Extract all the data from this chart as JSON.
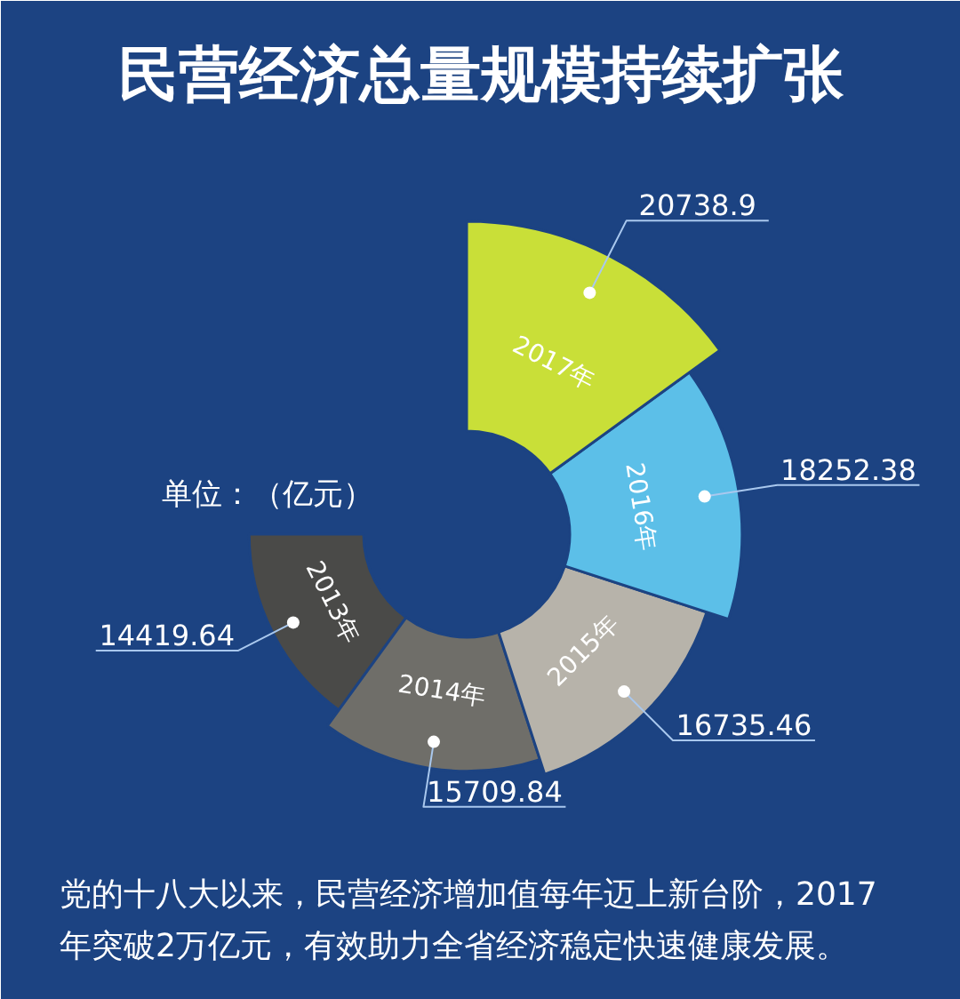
{
  "chart_data": {
    "type": "other",
    "title": "民营经济总量规模持续扩张",
    "categories": [
      "2013年",
      "2014年",
      "2015年",
      "2016年",
      "2017年"
    ],
    "values": [
      14419.64,
      15709.84,
      16735.46,
      18252.38,
      20738.9
    ],
    "data_labels": true,
    "colors": [
      "#4a4a48",
      "#6f6e69",
      "#b7b3aa",
      "#5cbfe8",
      "#c9df38"
    ],
    "annotations": [
      "单位：（亿元）",
      "党的十八大以来，民营经济增加值每年迈上新台阶，2017年突破2万亿元，有效助力全省经济稳定快速健康发展。"
    ]
  }
}
